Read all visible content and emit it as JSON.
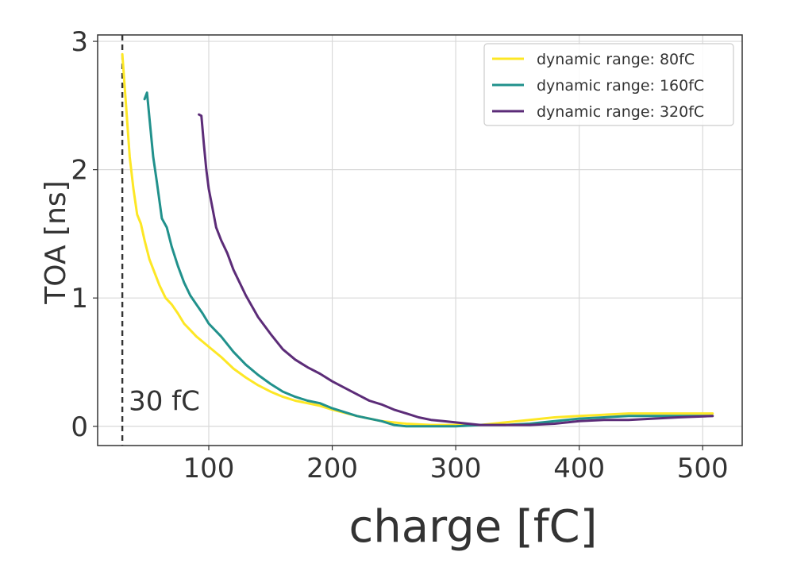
{
  "chart_data": {
    "type": "line",
    "title": "",
    "xlabel": "charge [fC]",
    "ylabel": "TOA [ns]",
    "xlim": [
      10,
      532
    ],
    "ylim": [
      -0.15,
      3.05
    ],
    "xticks": [
      100,
      200,
      300,
      400,
      500
    ],
    "yticks": [
      0,
      1,
      2,
      3
    ],
    "grid": true,
    "legend_position": "top-right",
    "annotation": {
      "text": "30 fC",
      "x": 30,
      "style": "dashed vertical line"
    },
    "series": [
      {
        "name": "dynamic range: 80fC",
        "color": "#fde725",
        "x": [
          30,
          33,
          36,
          39,
          42,
          45,
          48,
          52,
          56,
          60,
          65,
          70,
          75,
          80,
          85,
          90,
          95,
          100,
          110,
          120,
          130,
          140,
          150,
          160,
          170,
          180,
          190,
          200,
          220,
          240,
          260,
          280,
          300,
          320,
          340,
          360,
          380,
          400,
          420,
          440,
          460,
          480,
          508
        ],
        "y": [
          2.9,
          2.5,
          2.1,
          1.85,
          1.65,
          1.58,
          1.45,
          1.3,
          1.2,
          1.1,
          1.0,
          0.95,
          0.88,
          0.8,
          0.75,
          0.7,
          0.66,
          0.62,
          0.54,
          0.45,
          0.38,
          0.32,
          0.27,
          0.23,
          0.2,
          0.18,
          0.16,
          0.13,
          0.08,
          0.04,
          0.02,
          0.01,
          0.01,
          0.01,
          0.03,
          0.05,
          0.07,
          0.08,
          0.09,
          0.1,
          0.1,
          0.1,
          0.1
        ]
      },
      {
        "name": "dynamic range: 160fC",
        "color": "#21918c",
        "x": [
          48,
          50,
          52,
          55,
          58,
          62,
          66,
          70,
          75,
          80,
          85,
          90,
          95,
          100,
          110,
          120,
          130,
          140,
          150,
          160,
          170,
          180,
          190,
          200,
          220,
          240,
          250,
          260,
          280,
          300,
          320,
          340,
          360,
          380,
          400,
          420,
          440,
          460,
          480,
          508
        ],
        "y": [
          2.55,
          2.6,
          2.4,
          2.1,
          1.9,
          1.62,
          1.55,
          1.4,
          1.25,
          1.12,
          1.02,
          0.95,
          0.88,
          0.8,
          0.7,
          0.58,
          0.48,
          0.4,
          0.33,
          0.27,
          0.23,
          0.2,
          0.18,
          0.14,
          0.08,
          0.04,
          0.01,
          0.0,
          0.0,
          0.0,
          0.01,
          0.01,
          0.02,
          0.04,
          0.06,
          0.07,
          0.08,
          0.08,
          0.08,
          0.08
        ]
      },
      {
        "name": "dynamic range: 320fC",
        "color": "#5c2c78",
        "x": [
          92,
          94,
          96,
          98,
          100,
          103,
          106,
          110,
          115,
          120,
          130,
          140,
          150,
          160,
          170,
          180,
          190,
          200,
          210,
          220,
          230,
          240,
          250,
          260,
          270,
          280,
          290,
          300,
          310,
          320,
          330,
          340,
          360,
          380,
          400,
          420,
          440,
          460,
          480,
          508
        ],
        "y": [
          2.43,
          2.42,
          2.2,
          2.0,
          1.85,
          1.7,
          1.55,
          1.45,
          1.35,
          1.22,
          1.02,
          0.85,
          0.72,
          0.6,
          0.52,
          0.46,
          0.41,
          0.35,
          0.3,
          0.25,
          0.2,
          0.17,
          0.13,
          0.1,
          0.07,
          0.05,
          0.04,
          0.03,
          0.02,
          0.01,
          0.01,
          0.01,
          0.01,
          0.02,
          0.04,
          0.05,
          0.05,
          0.06,
          0.07,
          0.08
        ]
      }
    ]
  }
}
